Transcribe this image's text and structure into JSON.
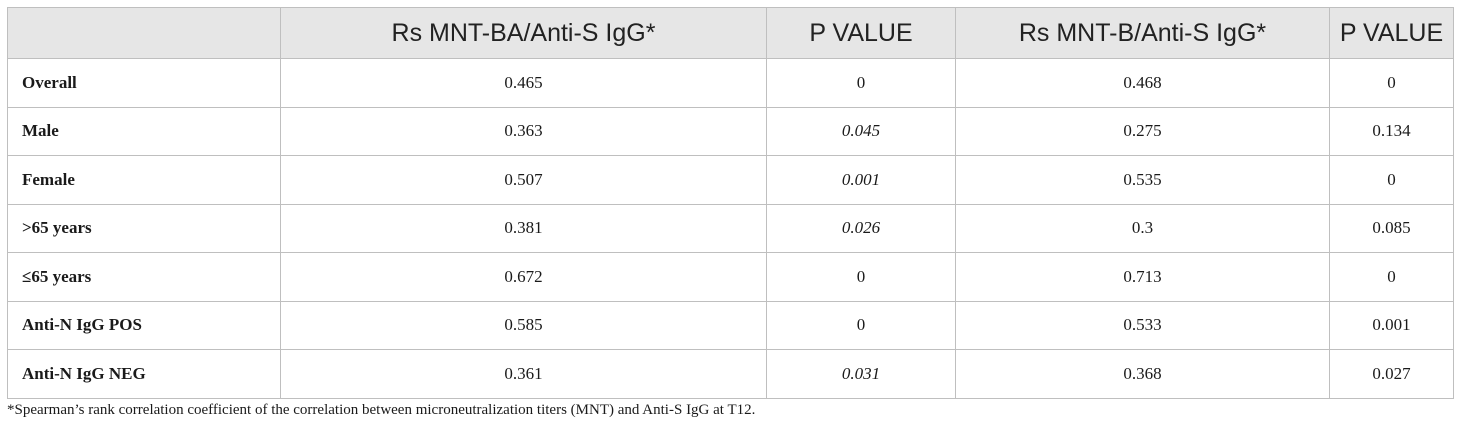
{
  "table": {
    "headers": [
      "",
      "Rs MNT-BA/Anti-S IgG*",
      "P VALUE",
      "Rs MNT-B/Anti-S IgG*",
      "P VALUE"
    ],
    "rows": [
      {
        "label": "Overall",
        "rs_ba": "0.465",
        "p_ba": "0",
        "p_ba_italic": false,
        "rs_b": "0.468",
        "p_b": "0"
      },
      {
        "label": "Male",
        "rs_ba": "0.363",
        "p_ba": "0.045",
        "p_ba_italic": true,
        "rs_b": "0.275",
        "p_b": "0.134"
      },
      {
        "label": "Female",
        "rs_ba": "0.507",
        "p_ba": "0.001",
        "p_ba_italic": true,
        "rs_b": "0.535",
        "p_b": "0"
      },
      {
        "label": ">65 years",
        "rs_ba": "0.381",
        "p_ba": "0.026",
        "p_ba_italic": true,
        "rs_b": "0.3",
        "p_b": "0.085"
      },
      {
        "label": "≤65 years",
        "rs_ba": "0.672",
        "p_ba": "0",
        "p_ba_italic": false,
        "rs_b": "0.713",
        "p_b": "0"
      },
      {
        "label": "Anti-N IgG POS",
        "rs_ba": "0.585",
        "p_ba": "0",
        "p_ba_italic": false,
        "rs_b": "0.533",
        "p_b": "0.001"
      },
      {
        "label": "Anti-N IgG NEG",
        "rs_ba": "0.361",
        "p_ba": "0.031",
        "p_ba_italic": true,
        "rs_b": "0.368",
        "p_b": "0.027"
      }
    ]
  },
  "footnote": "*Spearman’s rank correlation coefficient of the correlation between microneutralization titers (MNT) and Anti-S IgG at T12.",
  "colors": {
    "header_bg": "#e6e6e6",
    "border": "#bfbfbf"
  }
}
